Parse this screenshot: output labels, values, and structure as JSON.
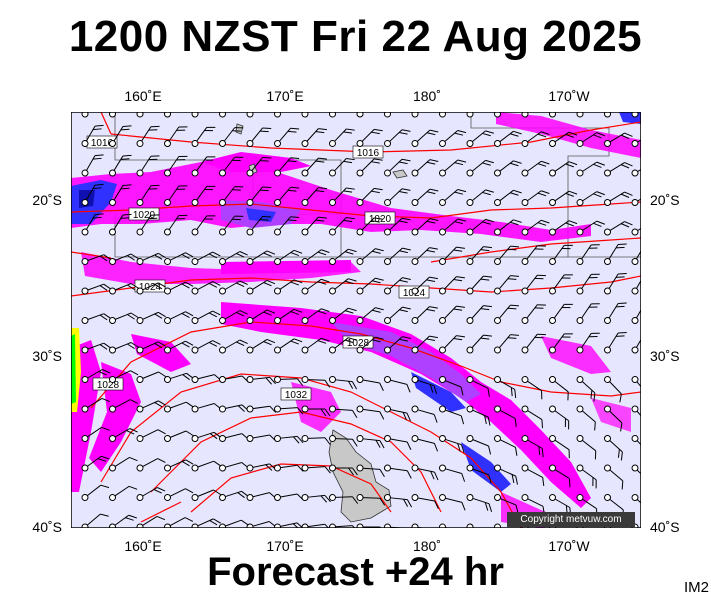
{
  "title": "1200 NZST Fri 22 Aug 2025",
  "footer": "Forecast +24 hr",
  "corner_label": "IM2",
  "copyright": "Copyright metvuw.com",
  "axes": {
    "x_ticks_top": [
      "160˚E",
      "170˚E",
      "180˚",
      "170˚W"
    ],
    "x_ticks_bottom": [
      "160˚E",
      "170˚E",
      "180˚",
      "170˚W"
    ],
    "y_ticks_left": [
      "20˚S",
      "30˚S",
      "40˚S"
    ],
    "y_ticks_right": [
      "20˚S",
      "30˚S",
      "40˚S"
    ]
  },
  "isobar_labels": [
    "1016",
    "1016",
    "1020",
    "1020",
    "1024",
    "1024",
    "1028",
    "1028",
    "1032"
  ],
  "colors": {
    "ocean": "#e6e6ff",
    "land": "#c8c8c8",
    "isobar": "#ff0000",
    "precip_light": "#ff00ff",
    "precip_medium": "#b040ff",
    "precip_heavy": "#3030ff",
    "wind_barb": "#000000"
  }
}
